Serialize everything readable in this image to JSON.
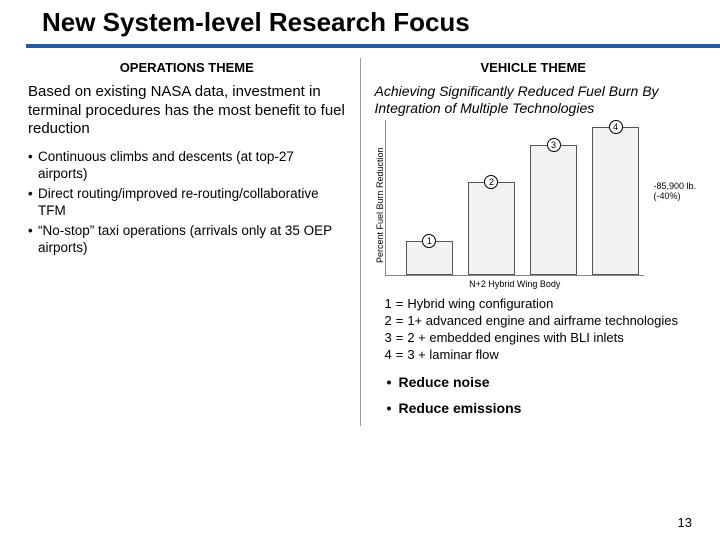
{
  "title": "New System-level Research Focus",
  "title_rule_color": "#1f5ca8",
  "divider_color": "#9a9a9a",
  "page_number": "13",
  "operations": {
    "header": "OPERATIONS THEME",
    "intro": "Based on existing NASA data, investment in terminal procedures has the most benefit to fuel reduction",
    "bullets": [
      "Continuous climbs and descents (at top-27 airports)",
      "Direct routing/improved re-routing/collaborative TFM",
      "“No-stop” taxi operations (arrivals only at 35 OEP airports)"
    ]
  },
  "vehicle": {
    "header": "VEHICLE THEME",
    "intro": "Achieving Significantly Reduced Fuel Burn By Integration of Multiple Technologies",
    "chart": {
      "type": "bar",
      "ylabel": "Percent Fuel Burn Reduction",
      "xlabel": "N+2 Hybrid Wing Body",
      "ylim": [
        0,
        50
      ],
      "bars": [
        {
          "marker": "1",
          "value": 11
        },
        {
          "marker": "2",
          "value": 30
        },
        {
          "marker": "3",
          "value": 42
        },
        {
          "marker": "4",
          "value": 48
        }
      ],
      "bar_positions_pct": [
        8,
        32,
        56,
        80
      ],
      "bar_fill": "#f2f2f2",
      "bar_border": "#555555",
      "grid_color": "#cccccc",
      "right_annotation_top": "-85,900 lb.",
      "right_annotation_bottom": "(-40%)"
    },
    "legend": [
      {
        "n": "1",
        "eq": "=",
        "text": "Hybrid wing configuration"
      },
      {
        "n": "2",
        "eq": "=",
        "text": "1+ advanced engine and airframe technologies"
      },
      {
        "n": "3",
        "eq": "=",
        "text": "2 + embedded engines with BLI inlets"
      },
      {
        "n": "4",
        "eq": "=",
        "text": "3 + laminar flow"
      }
    ],
    "extras": [
      "Reduce noise",
      "Reduce emissions"
    ]
  }
}
